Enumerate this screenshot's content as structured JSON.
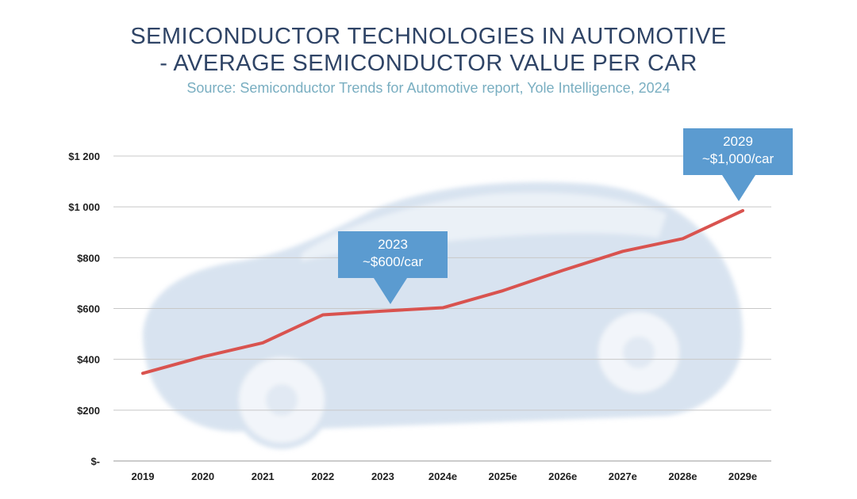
{
  "header": {
    "title_line1": "SEMICONDUCTOR TECHNOLOGIES IN AUTOMOTIVE",
    "title_line2": "- AVERAGE SEMICONDUCTOR VALUE PER CAR",
    "subtitle": "Source: Semiconductor Trends for Automotive report, Yole Intelligence, 2024"
  },
  "callouts": {
    "c2023": {
      "year": "2023",
      "value": "~$600/car"
    },
    "c2029": {
      "year": "2029",
      "value": "~$1,000/car"
    }
  },
  "colors": {
    "line": "#d9534f",
    "callout": "#5b9bd0",
    "title": "#2f4466",
    "subtitle": "#79aec1",
    "grid": "#c8c8c8",
    "car": "#a9c0dc"
  },
  "chart_data": {
    "type": "line",
    "categories": [
      "2019",
      "2020",
      "2021",
      "2022",
      "2023",
      "2024e",
      "2025e",
      "2026e",
      "2027e",
      "2028e",
      "2029e"
    ],
    "series": [
      {
        "values": [
          345,
          410,
          465,
          575,
          590,
          603,
          670,
          750,
          825,
          875,
          985
        ]
      }
    ],
    "ylim": [
      0,
      1200
    ],
    "yticks": [
      0,
      200,
      400,
      600,
      800,
      1000,
      1200
    ],
    "ytick_labels": [
      "$-",
      "$200",
      "$400",
      "$600",
      "$800",
      "$1 000",
      "$1 200"
    ],
    "grid": true,
    "background_image": "car-silhouette"
  }
}
